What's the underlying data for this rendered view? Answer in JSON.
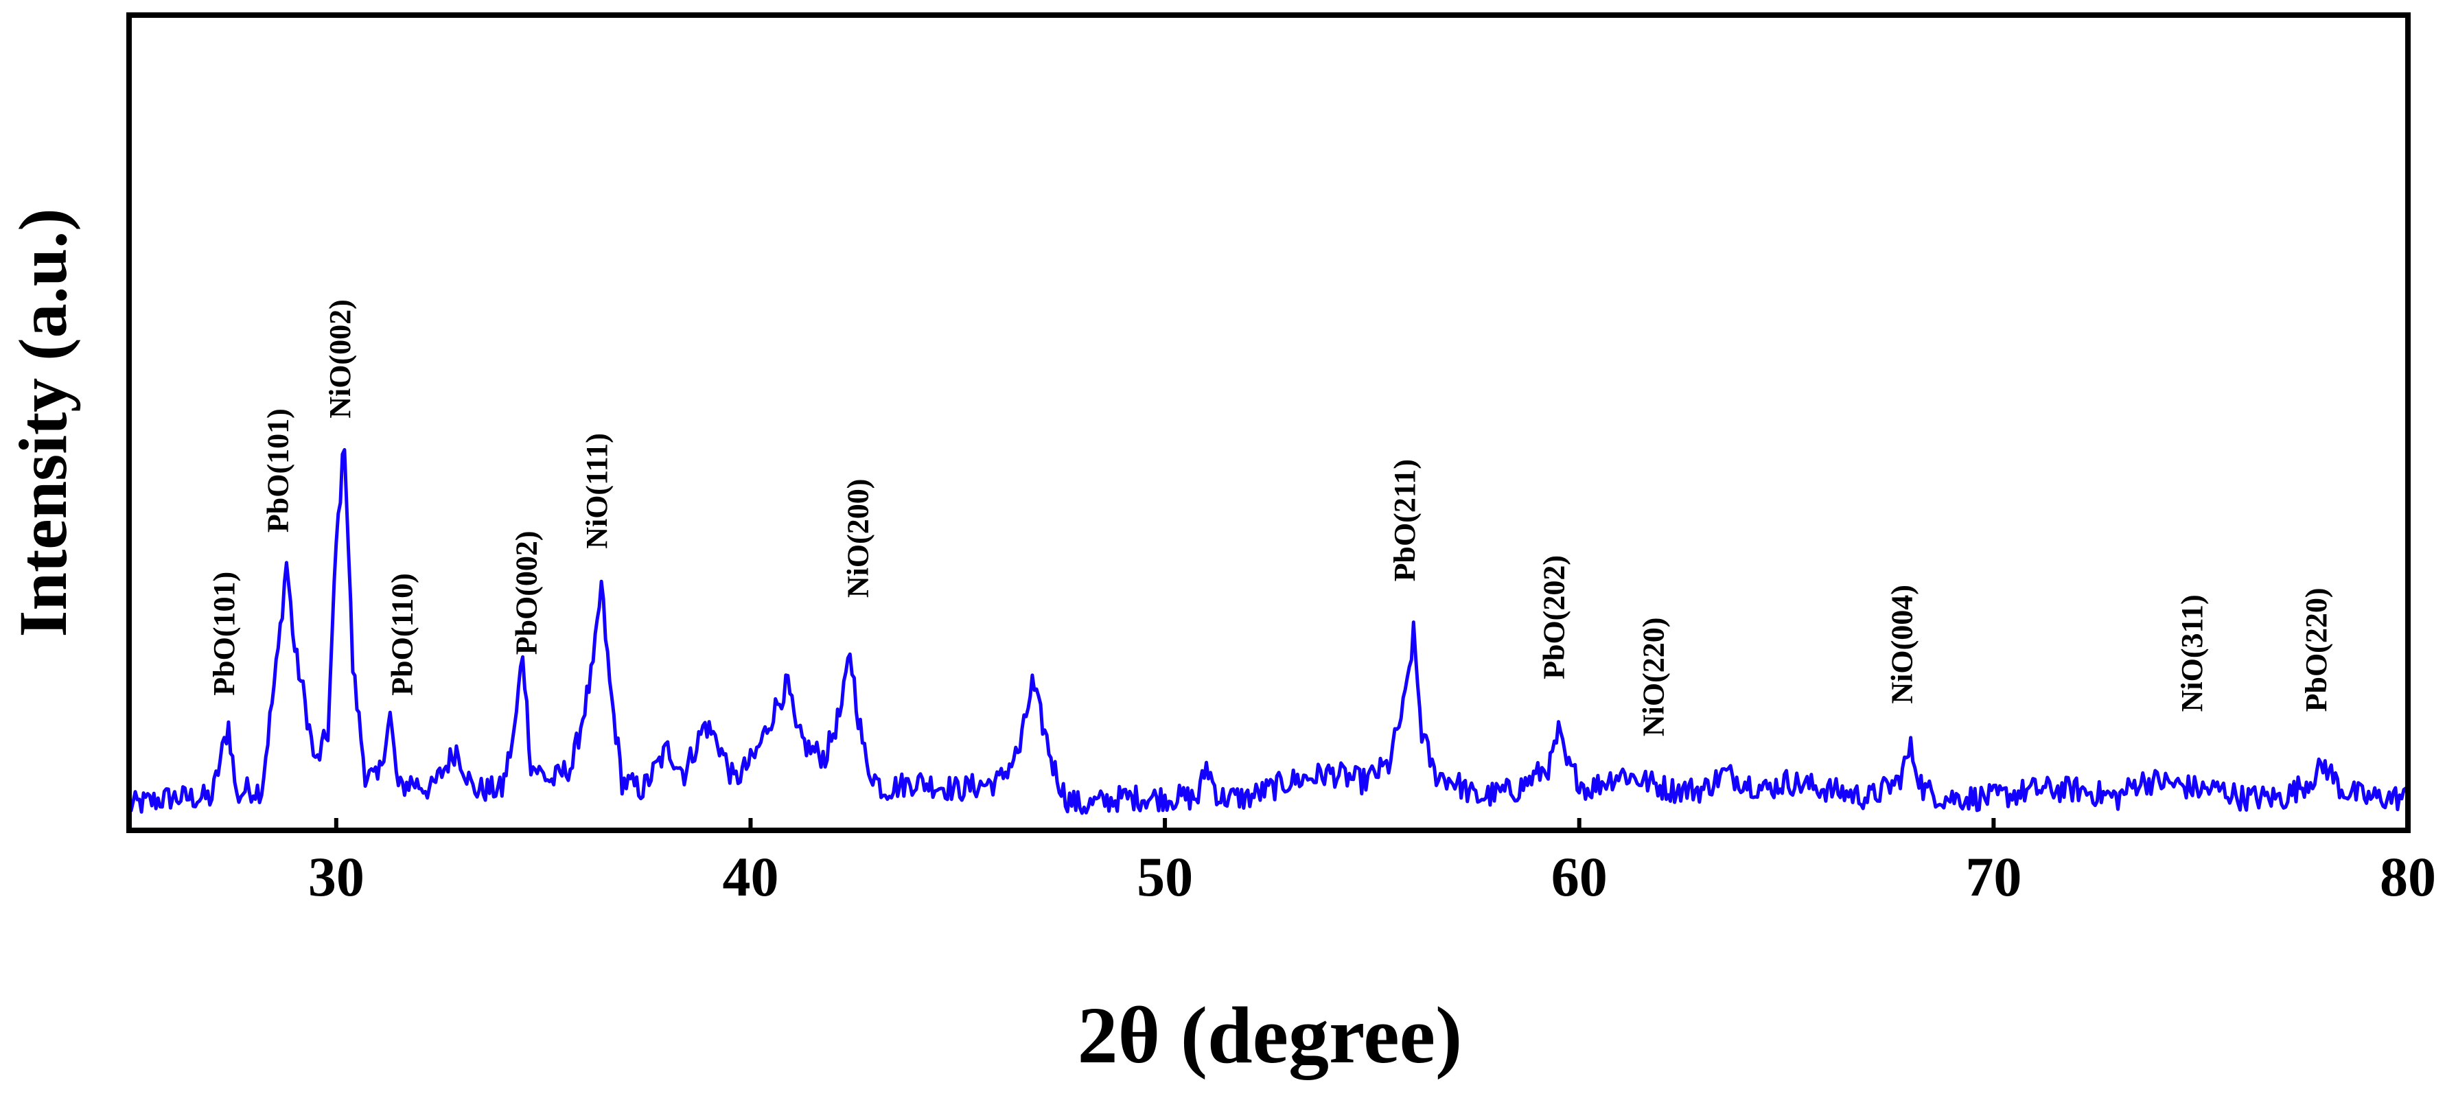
{
  "chart_data": {
    "type": "line",
    "title": "",
    "xlabel": "2θ (degree)",
    "ylabel": "Intensity (a.u.)",
    "xlim": [
      25,
      80
    ],
    "ylim": [
      0,
      100
    ],
    "xticks": [
      30,
      40,
      50,
      60,
      70,
      80
    ],
    "y_tick_labels": "none",
    "grid": false,
    "legend": "none",
    "colors": {
      "series": "#1400ff",
      "axes": "#000000"
    },
    "series": [
      {
        "x": [
          25.0,
          26.0,
          27.0,
          27.4,
          27.6,
          27.8,
          28.2,
          28.6,
          28.8,
          29.0,
          29.2,
          29.5,
          29.8,
          30.0,
          30.2,
          30.4,
          30.7,
          31.0,
          31.3,
          31.5,
          31.8,
          32.3,
          32.9,
          33.3,
          34.0,
          34.3,
          34.5,
          34.7,
          35.2,
          35.7,
          36.2,
          36.4,
          36.6,
          36.9,
          37.4,
          38.0,
          38.4,
          38.9,
          39.2,
          39.6,
          40.1,
          40.6,
          40.9,
          41.1,
          41.4,
          41.8,
          42.2,
          42.4,
          42.6,
          42.8,
          43.2,
          44.0,
          45.0,
          46.0,
          46.5,
          46.8,
          47.0,
          47.3,
          47.6,
          48.0,
          49.0,
          50.0,
          50.8,
          51.0,
          51.3,
          52.0,
          53.0,
          54.0,
          54.8,
          55.4,
          55.8,
          56.0,
          56.2,
          56.5,
          57.0,
          57.5,
          58.5,
          59.3,
          59.5,
          59.7,
          60.2,
          61.0,
          61.6,
          62.2,
          63.0,
          63.5,
          64.5,
          65.0,
          66.0,
          67.0,
          67.7,
          68.0,
          68.3,
          68.8,
          70.0,
          71.0,
          72.0,
          73.0,
          73.5,
          74.0,
          75.0,
          75.5,
          76.0,
          77.0,
          77.6,
          78.0,
          78.4,
          79.0,
          80.0
        ],
        "y": [
          3,
          4,
          4,
          13,
          4,
          5,
          5,
          22,
          33,
          22,
          17,
          8,
          12,
          35,
          48,
          20,
          7,
          6,
          14,
          5,
          6,
          5,
          10,
          5,
          5,
          12,
          22,
          8,
          6,
          8,
          20,
          30,
          18,
          6,
          5,
          10,
          7,
          13,
          11,
          6,
          9,
          15,
          18,
          12,
          10,
          9,
          15,
          22,
          14,
          8,
          5,
          6,
          5,
          6,
          10,
          18,
          14,
          8,
          4,
          3,
          4,
          4,
          4,
          8,
          4,
          4,
          6,
          7,
          6,
          8,
          16,
          24,
          12,
          7,
          6,
          4,
          5,
          8,
          12,
          8,
          5,
          7,
          6,
          5,
          5,
          7,
          5,
          6,
          5,
          4,
          6,
          10,
          5,
          4,
          4,
          5,
          5,
          4,
          6,
          6,
          5,
          5,
          4,
          4,
          6,
          8,
          5,
          4,
          4
        ]
      }
    ],
    "peak_annotations": [
      {
        "label": "PbO(101)",
        "x": 27.3,
        "y": 14
      },
      {
        "label": "PbO(101)",
        "x": 28.6,
        "y": 34
      },
      {
        "label": "NiO(002)",
        "x": 30.1,
        "y": 48
      },
      {
        "label": "PbO(110)",
        "x": 31.6,
        "y": 14
      },
      {
        "label": "PbO(002)",
        "x": 34.6,
        "y": 19
      },
      {
        "label": "NiO(111)",
        "x": 36.3,
        "y": 32
      },
      {
        "label": "NiO(200)",
        "x": 42.6,
        "y": 26
      },
      {
        "label": "PbO(211)",
        "x": 55.8,
        "y": 28
      },
      {
        "label": "PbO(202)",
        "x": 59.4,
        "y": 16
      },
      {
        "label": "NiO(220)",
        "x": 61.8,
        "y": 9
      },
      {
        "label": "NiO(004)",
        "x": 67.8,
        "y": 13
      },
      {
        "label": "NiO(311)",
        "x": 74.8,
        "y": 12
      },
      {
        "label": "PbO(220)",
        "x": 77.8,
        "y": 12
      }
    ]
  }
}
